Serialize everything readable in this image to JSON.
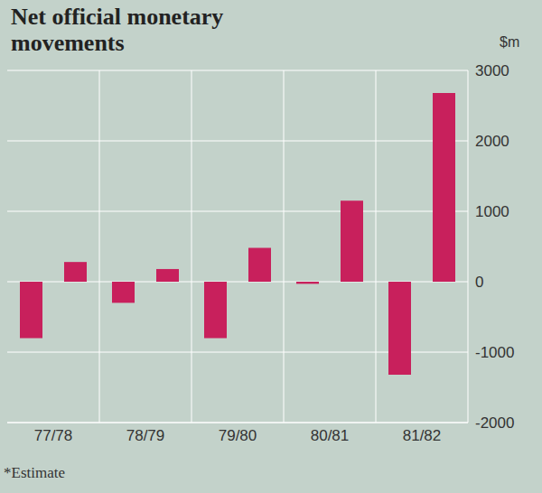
{
  "chart_data": {
    "type": "bar",
    "title": "Net official monetary movements",
    "y_label": "$m",
    "footnote": "*Estimate",
    "categories": [
      "77/78",
      "78/79",
      "79/80",
      "80/81",
      "81/82"
    ],
    "series": [
      {
        "color": "#c8205c",
        "values": [
          -800,
          -300,
          -800,
          -30,
          -1320
        ]
      },
      {
        "color": "#c8205c",
        "values": [
          280,
          180,
          480,
          1150,
          2680
        ]
      }
    ],
    "ylim": [
      -2000,
      3000
    ],
    "yticks": [
      -2000,
      -1000,
      0,
      1000,
      2000,
      3000
    ],
    "grid": true
  }
}
